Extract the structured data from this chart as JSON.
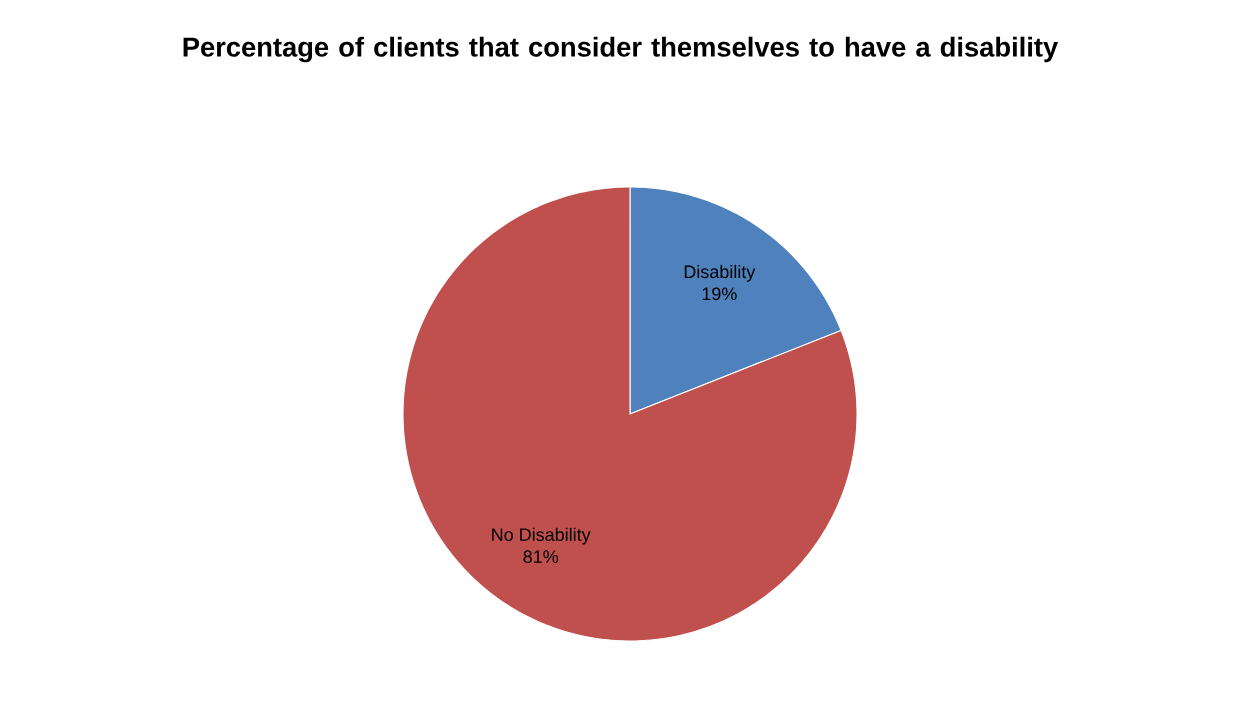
{
  "chart_data": {
    "type": "pie",
    "title": "Percentage of clients that consider themselves to have a disability",
    "categories": [
      "Disability",
      "No Disability"
    ],
    "values": [
      19,
      81
    ],
    "value_labels": [
      "19%",
      "81%"
    ],
    "colors": [
      "#4f81bd",
      "#c0504d"
    ]
  }
}
